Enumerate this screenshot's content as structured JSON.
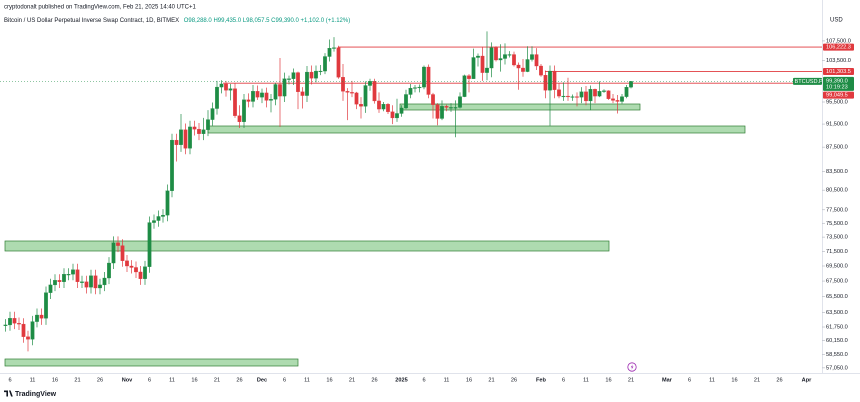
{
  "header": "cryptodonalt published on TradingView.com, Feb 21, 2025 14:40 UTC+1",
  "footer": "TradingView",
  "chart_data": {
    "type": "candlestick",
    "title": "Bitcoin / US Dollar Perpetual Inverse Swap Contract, 1D, BITMEX",
    "ohlc": "O98,288.0 H99,435.0 L98,057.5 C99,390.0 +1,102.0 (+1.12%)",
    "currency": "USD",
    "up_color": "#1e8c45",
    "down_color": "#e0393e",
    "log_scale": true,
    "ylim": [
      55940,
      109800
    ],
    "yticks": [
      {
        "value": 107500,
        "label": "107,500.0"
      },
      {
        "value": 103500,
        "label": "103,500.0"
      },
      {
        "value": 95500,
        "label": "95,500.0"
      },
      {
        "value": 91500,
        "label": "91,500.0"
      },
      {
        "value": 87500,
        "label": "87,500.0"
      },
      {
        "value": 83500,
        "label": "83,500.0"
      },
      {
        "value": 80500,
        "label": "80,500.0"
      },
      {
        "value": 77500,
        "label": "77,500.0"
      },
      {
        "value": 75500,
        "label": "75,500.0"
      },
      {
        "value": 73500,
        "label": "73,500.0"
      },
      {
        "value": 71500,
        "label": "71,500.0"
      },
      {
        "value": 69500,
        "label": "69,500.0"
      },
      {
        "value": 67500,
        "label": "67,500.0"
      },
      {
        "value": 65500,
        "label": "65,500.0"
      },
      {
        "value": 63500,
        "label": "63,500.0"
      },
      {
        "value": 61750,
        "label": "61,750.0"
      },
      {
        "value": 60150,
        "label": "60,150.0"
      },
      {
        "value": 58550,
        "label": "58,550.0"
      },
      {
        "value": 57050,
        "label": "57,050.0"
      }
    ],
    "levels": [
      {
        "value": 106222.3,
        "label": "106,222.3",
        "color": "#e0393e"
      },
      {
        "value": 101303.5,
        "label": "101,303.5",
        "color": "#e0393e"
      },
      {
        "value": 99049.5,
        "label": "99,049.5",
        "color": "#e0393e"
      }
    ],
    "symbol_tag": "BTCUSD.P",
    "last_price": {
      "value": 99390.0,
      "label": "99,390.0"
    },
    "countdown": "10:19:23",
    "categories": [
      null,
      "6",
      null,
      null,
      null,
      null,
      "11",
      null,
      null,
      null,
      null,
      "16",
      null,
      null,
      null,
      null,
      "21",
      null,
      null,
      null,
      null,
      "26",
      null,
      null,
      null,
      null,
      null,
      "Nov",
      null,
      null,
      null,
      null,
      "6",
      null,
      null,
      null,
      null,
      "11",
      null,
      null,
      null,
      null,
      "16",
      null,
      null,
      null,
      null,
      "21",
      null,
      null,
      null,
      null,
      "26",
      null,
      null,
      null,
      null,
      "Dec",
      null,
      null,
      null,
      null,
      "6",
      null,
      null,
      null,
      null,
      "11",
      null,
      null,
      null,
      null,
      "16",
      null,
      null,
      null,
      null,
      "21",
      null,
      null,
      null,
      null,
      "26",
      null,
      null,
      null,
      null,
      null,
      "2025",
      null,
      null,
      null,
      null,
      "6",
      null,
      null,
      null,
      null,
      "11",
      null,
      null,
      null,
      null,
      "16",
      null,
      null,
      null,
      null,
      "21",
      null,
      null,
      null,
      null,
      "26",
      null,
      null,
      null,
      null,
      null,
      "Feb",
      null,
      null,
      null,
      null,
      "6",
      null,
      null,
      null,
      null,
      "11",
      null,
      null,
      null,
      null,
      "16",
      null,
      null,
      null,
      null,
      "21",
      null,
      null,
      null,
      null,
      null,
      null,
      null,
      "Mar",
      null,
      null,
      null,
      null,
      "6",
      null,
      null,
      null,
      null,
      "11",
      null,
      null,
      null,
      null,
      "16",
      null,
      null,
      null,
      null,
      "21",
      null,
      null,
      null,
      null,
      "26",
      null,
      null,
      null,
      null,
      null,
      "Apr",
      null,
      null
    ],
    "open": [
      61900,
      62000,
      62800,
      62200,
      62100,
      60600,
      60300,
      62400,
      63200,
      62800,
      66000,
      67000,
      67600,
      67400,
      68400,
      68400,
      69000,
      67400,
      67400,
      66700,
      68200,
      66600,
      67000,
      67900,
      69900,
      72700,
      72300,
      70200,
      69500,
      69300,
      68700,
      67800,
      69400,
      75600,
      75900,
      76500,
      76700,
      80400,
      88700,
      87900,
      90500,
      87300,
      91000,
      90600,
      89800,
      90500,
      92300,
      94300,
      98300,
      98900,
      97700,
      98000,
      93000,
      91900,
      95900,
      95600,
      97500,
      96400,
      97200,
      95800,
      96000,
      98800,
      96600,
      99900,
      99900,
      101100,
      97400,
      96700,
      101200,
      100000,
      101400,
      101400,
      104300,
      106000,
      106100,
      100200,
      97500,
      97300,
      97200,
      95100,
      94700,
      98600,
      99400,
      95700,
      94200,
      95100,
      93700,
      92600,
      93400,
      94400,
      96900,
      98100,
      98200,
      98300,
      102200,
      96900,
      95000,
      92500,
      94700,
      94500,
      94500,
      94500,
      96500,
      100500,
      99900,
      104100,
      104400,
      101100,
      102000,
      106100,
      103600,
      103900,
      104700,
      104700,
      102600,
      102000,
      101300,
      103700,
      104700,
      102400,
      100600,
      97700,
      101400,
      97800,
      96600,
      96600,
      96500,
      96500,
      96400,
      97400,
      95700,
      97900,
      96600,
      97500,
      97600,
      96100,
      95800,
      95600,
      96500,
      98288,
      null,
      null,
      null,
      null,
      null,
      null,
      null,
      null,
      null,
      null,
      null,
      null,
      null,
      null,
      null,
      null,
      null,
      null,
      null,
      null,
      null,
      null,
      null,
      null,
      null,
      null,
      null,
      null,
      null,
      null,
      null,
      null,
      null,
      null,
      null,
      null,
      null,
      null,
      null,
      null,
      null
    ],
    "high": [
      62700,
      63600,
      63600,
      62900,
      62800,
      61300,
      63100,
      64000,
      64000,
      66800,
      67800,
      68400,
      68400,
      69200,
      69200,
      69800,
      69800,
      68200,
      68200,
      69000,
      69000,
      67800,
      68700,
      70700,
      73600,
      73600,
      73200,
      71000,
      70300,
      70100,
      69500,
      70200,
      76500,
      76800,
      77400,
      77600,
      81400,
      89800,
      89800,
      93300,
      91600,
      92100,
      92100,
      91700,
      92600,
      94000,
      95400,
      99500,
      99600,
      99500,
      98900,
      99000,
      94900,
      97000,
      97100,
      98700,
      98600,
      98000,
      98200,
      97000,
      99100,
      104000,
      101100,
      100500,
      101900,
      101300,
      98300,
      102400,
      102500,
      102500,
      102600,
      105000,
      107800,
      108300,
      106500,
      102800,
      98100,
      99500,
      97400,
      96400,
      99400,
      99900,
      99900,
      97300,
      95500,
      95300,
      94900,
      96100,
      94900,
      97800,
      98900,
      98700,
      98800,
      102500,
      102700,
      97200,
      95300,
      95800,
      95000,
      95300,
      95800,
      97300,
      100700,
      100800,
      105900,
      104900,
      106300,
      109500,
      107200,
      106400,
      106800,
      107000,
      105400,
      105300,
      103100,
      103800,
      106400,
      106400,
      106000,
      102800,
      101500,
      102500,
      102500,
      99000,
      99200,
      100100,
      96900,
      97300,
      98300,
      98500,
      98600,
      98000,
      99400,
      97900,
      97700,
      97000,
      96800,
      97000,
      98700,
      99435,
      null,
      null,
      null,
      null,
      null,
      null,
      null,
      null,
      null,
      null,
      null,
      null,
      null,
      null,
      null,
      null,
      null,
      null,
      null,
      null,
      null,
      null,
      null,
      null,
      null,
      null,
      null,
      null,
      null,
      null,
      null,
      null,
      null,
      null,
      null,
      null,
      null,
      null,
      null,
      null,
      null
    ],
    "low": [
      61200,
      61300,
      61500,
      61400,
      59900,
      58900,
      59600,
      61700,
      62000,
      62000,
      65200,
      66200,
      66600,
      66600,
      67600,
      67600,
      66600,
      66600,
      65900,
      65900,
      65800,
      65800,
      66200,
      67100,
      69100,
      71400,
      69400,
      68700,
      68500,
      67900,
      67000,
      67000,
      68600,
      74700,
      75000,
      75600,
      75800,
      79400,
      85100,
      86700,
      86300,
      86300,
      89500,
      88700,
      88700,
      89400,
      91200,
      93200,
      97100,
      96500,
      95800,
      92600,
      90800,
      90800,
      94500,
      94500,
      95900,
      95300,
      94500,
      93600,
      94900,
      91000,
      95500,
      98800,
      98700,
      94200,
      94300,
      95500,
      98800,
      99200,
      100600,
      100800,
      103300,
      105300,
      99900,
      95700,
      92200,
      96400,
      94200,
      92500,
      93500,
      97600,
      95200,
      93500,
      93800,
      93300,
      91500,
      91900,
      92800,
      94200,
      96200,
      97300,
      97300,
      97900,
      96200,
      92500,
      91300,
      92200,
      93800,
      93700,
      89200,
      94300,
      96400,
      97300,
      99900,
      102300,
      99500,
      99600,
      100200,
      103300,
      101300,
      102700,
      104100,
      102300,
      97800,
      100300,
      101200,
      103300,
      101600,
      100300,
      96200,
      91200,
      96200,
      96200,
      95700,
      95700,
      95700,
      94700,
      95300,
      94900,
      94000,
      95300,
      96400,
      97200,
      95900,
      95300,
      93400,
      95200,
      96200,
      98057.5,
      null,
      null,
      null,
      null,
      null,
      null,
      null,
      null,
      null,
      null,
      null,
      null,
      null,
      null,
      null,
      null,
      null,
      null,
      null,
      null,
      null,
      null,
      null,
      null,
      null,
      null,
      null,
      null,
      null,
      null,
      null,
      null,
      null,
      null,
      null,
      null,
      null,
      null,
      null,
      null,
      null
    ],
    "close": [
      62000,
      62800,
      62200,
      62100,
      60600,
      60300,
      62400,
      63200,
      62800,
      66000,
      67000,
      67600,
      67400,
      68400,
      68400,
      69000,
      67400,
      67400,
      66700,
      68200,
      66600,
      67000,
      67900,
      69900,
      72700,
      72300,
      70200,
      69500,
      69300,
      68700,
      67800,
      69400,
      75600,
      75900,
      76500,
      76700,
      80400,
      88700,
      87900,
      90500,
      87300,
      91000,
      90600,
      89800,
      90500,
      92300,
      94300,
      98300,
      98900,
      97700,
      98000,
      93000,
      91900,
      95900,
      95600,
      97500,
      96400,
      97200,
      95800,
      96000,
      98800,
      96600,
      99900,
      99900,
      101100,
      97400,
      96700,
      101200,
      100000,
      101400,
      101400,
      104300,
      106000,
      106100,
      100200,
      97500,
      97300,
      97200,
      95100,
      94700,
      98600,
      99400,
      95700,
      94200,
      95100,
      93700,
      92600,
      93400,
      94400,
      96900,
      98100,
      98200,
      98300,
      102200,
      96900,
      95000,
      92500,
      94700,
      94500,
      94500,
      94500,
      96500,
      100500,
      99900,
      104100,
      104400,
      101100,
      102000,
      106100,
      103600,
      103900,
      104700,
      104700,
      102600,
      102000,
      101300,
      103700,
      104700,
      102400,
      100600,
      97700,
      101400,
      97800,
      96600,
      96600,
      96500,
      96500,
      96400,
      97400,
      95700,
      97900,
      96600,
      97500,
      97600,
      96100,
      95800,
      95600,
      96500,
      98288,
      99390,
      null,
      null,
      null,
      null,
      null,
      null,
      null,
      null,
      null,
      null,
      null,
      null,
      null,
      null,
      null,
      null,
      null,
      null,
      null,
      null,
      null,
      null,
      null,
      null,
      null,
      null,
      null,
      null,
      null,
      null,
      null,
      null,
      null,
      null,
      null,
      null,
      null,
      null,
      null,
      null,
      null
    ]
  }
}
